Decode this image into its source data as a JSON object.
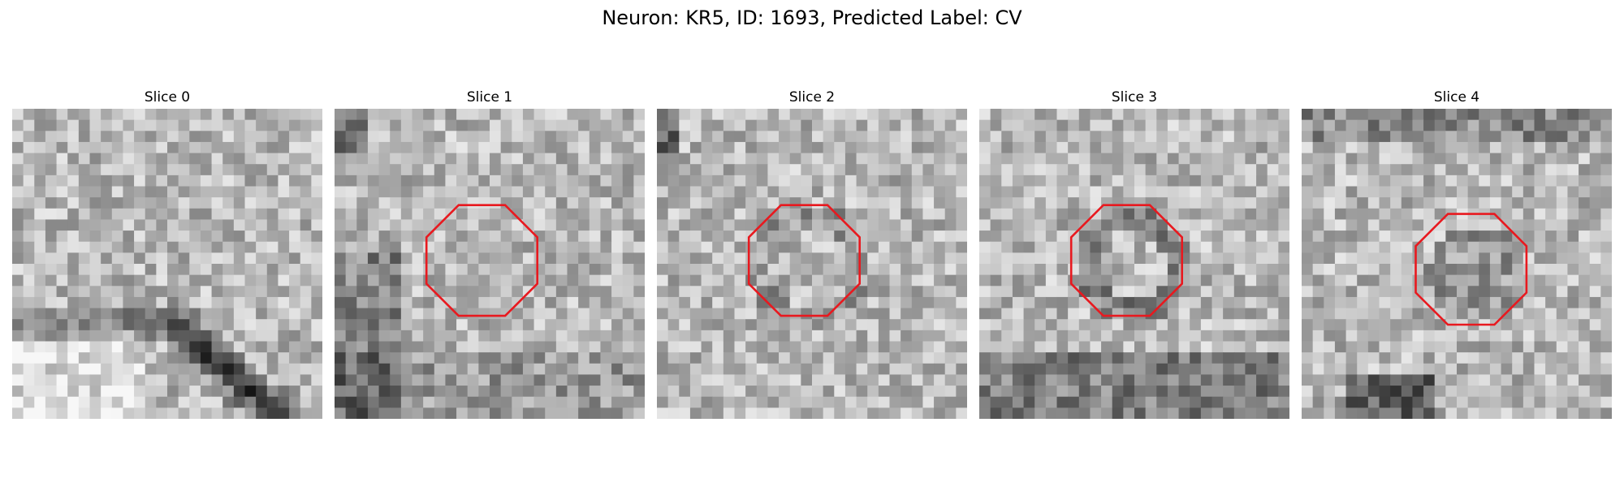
{
  "figure": {
    "title": "Neuron: KR5, ID: 1693, Predicted Label: CV"
  },
  "colors": {
    "contour": "#e8191f",
    "background": "#ffffff"
  },
  "panels": [
    {
      "title": "Slice 0",
      "seed": 11,
      "dark_regions": "diagonal-band",
      "has_contour": false
    },
    {
      "title": "Slice 1",
      "seed": 23,
      "dark_regions": "lower-left",
      "has_contour": true
    },
    {
      "title": "Slice 2",
      "seed": 37,
      "dark_regions": "ring",
      "has_contour": true
    },
    {
      "title": "Slice 3",
      "seed": 41,
      "dark_regions": "bottom",
      "has_contour": true
    },
    {
      "title": "Slice 4",
      "seed": 53,
      "dark_regions": "bottom-center",
      "has_contour": true
    }
  ]
}
